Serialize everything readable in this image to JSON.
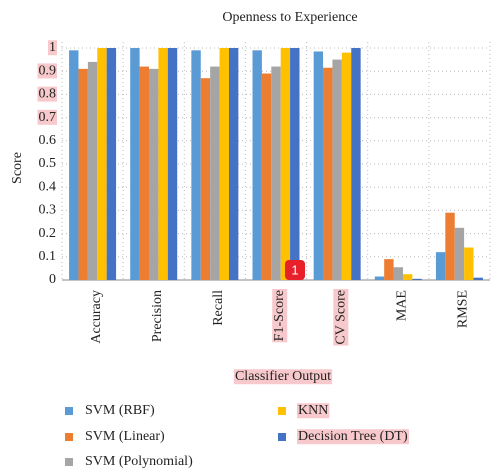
{
  "chart_data": {
    "type": "bar",
    "title": "Openness to Experience",
    "xlabel": "Classifier Output",
    "ylabel": "Score",
    "categories": [
      "Accuracy",
      "Precision",
      "Recall",
      "F1-Score",
      "CV Score",
      "MAE",
      "RMSE"
    ],
    "series": [
      {
        "name": "SVM (RBF)",
        "color": "#5b9bd5",
        "values": [
          0.99,
          1.0,
          0.99,
          0.99,
          0.985,
          0.015,
          0.12
        ]
      },
      {
        "name": "SVM (Linear)",
        "color": "#ed7d31",
        "values": [
          0.91,
          0.92,
          0.87,
          0.89,
          0.915,
          0.09,
          0.29
        ]
      },
      {
        "name": "SVM (Polynomial)",
        "color": "#a5a5a5",
        "values": [
          0.94,
          0.91,
          0.92,
          0.92,
          0.95,
          0.055,
          0.225
        ]
      },
      {
        "name": "KNN",
        "color": "#ffc000",
        "values": [
          1.0,
          1.0,
          1.0,
          1.0,
          0.98,
          0.025,
          0.14
        ]
      },
      {
        "name": "Decision Tree (DT)",
        "color": "#4472c4",
        "values": [
          1.0,
          1.0,
          1.0,
          1.0,
          1.0,
          0.005,
          0.01
        ]
      }
    ],
    "ylim": [
      0,
      1
    ],
    "yticks": [
      0,
      0.1,
      0.2,
      0.3,
      0.4,
      0.5,
      0.6,
      0.7,
      0.8,
      0.9,
      1
    ],
    "grid": true,
    "legend": "bottom",
    "annotation": "1"
  }
}
